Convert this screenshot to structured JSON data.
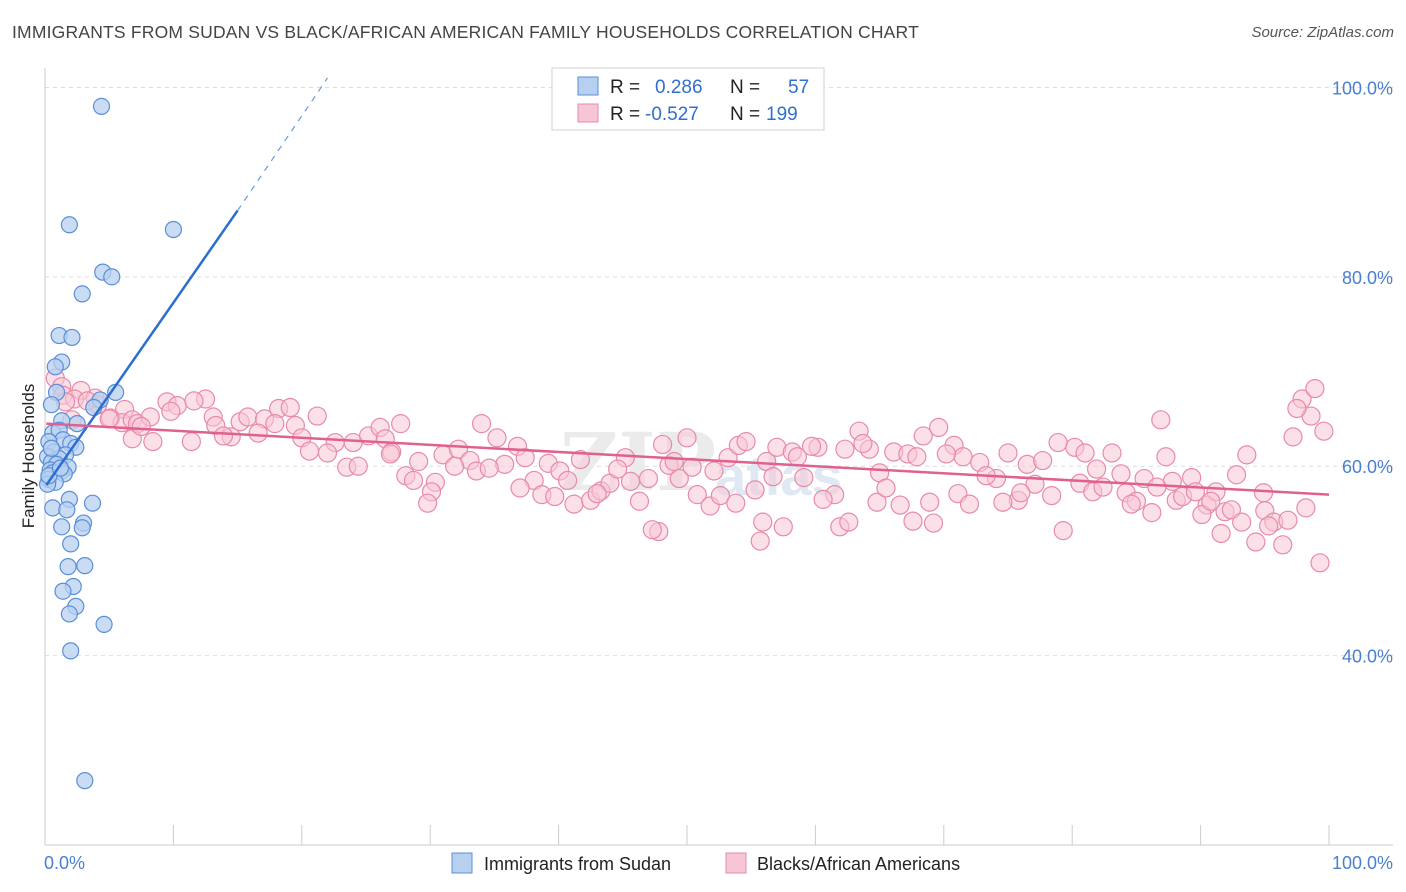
{
  "title": "IMMIGRANTS FROM SUDAN VS BLACK/AFRICAN AMERICAN FAMILY HOUSEHOLDS CORRELATION CHART",
  "source": "Source: ZipAtlas.com",
  "watermark": {
    "zip": "ZIP",
    "atlas": "atlas"
  },
  "legend": {
    "r_label": "R =",
    "n_label": "N =",
    "series1": {
      "r": "0.286",
      "n": "57"
    },
    "series2": {
      "r": "-0.527",
      "n": "199"
    }
  },
  "colors": {
    "blue_fill": "#b7d0f0",
    "blue_stroke": "#5a8fd8",
    "blue_line": "#2a6fcf",
    "pink_fill": "#f7c6d6",
    "pink_stroke": "#e88aaa",
    "pink_line": "#e0608f",
    "grid": "#dddddd",
    "tick_text": "#4a7fd0"
  },
  "chart_data": {
    "type": "scatter",
    "title": "IMMIGRANTS FROM SUDAN VS BLACK/AFRICAN AMERICAN FAMILY HOUSEHOLDS CORRELATION CHART",
    "xlabel": "",
    "ylabel": "Family Households",
    "xlim": [
      0,
      100
    ],
    "ylim": [
      20,
      104
    ],
    "x_tick_labels": {
      "left": "0.0%",
      "right": "100.0%"
    },
    "y_ticks": [
      {
        "value": 100,
        "label": "100.0%"
      },
      {
        "value": 80,
        "label": "80.0%"
      },
      {
        "value": 60,
        "label": "60.0%"
      },
      {
        "value": 40,
        "label": "40.0%"
      }
    ],
    "grid": true,
    "legend_position": "top-center",
    "series": [
      {
        "name": "Immigrants from Sudan",
        "color": "blue",
        "points": [
          [
            4.4,
            98
          ],
          [
            1.9,
            85.5
          ],
          [
            10,
            85
          ],
          [
            4.5,
            80.5
          ],
          [
            5.2,
            80
          ],
          [
            2.9,
            78.2
          ],
          [
            1.1,
            73.8
          ],
          [
            2.1,
            73.6
          ],
          [
            1.3,
            71
          ],
          [
            0.8,
            70.5
          ],
          [
            5.5,
            67.8
          ],
          [
            0.9,
            67.8
          ],
          [
            4.3,
            67
          ],
          [
            0.5,
            66.5
          ],
          [
            3.8,
            66.2
          ],
          [
            2.5,
            64.5
          ],
          [
            1.3,
            64.8
          ],
          [
            0.6,
            63.5
          ],
          [
            1.1,
            63.8
          ],
          [
            1.4,
            62.8
          ],
          [
            2.0,
            62.4
          ],
          [
            0.3,
            62.6
          ],
          [
            2.4,
            62
          ],
          [
            0.7,
            61.5
          ],
          [
            1.6,
            61.2
          ],
          [
            0.2,
            61
          ],
          [
            1.1,
            60.8
          ],
          [
            0.5,
            60.4
          ],
          [
            0.9,
            60.2
          ],
          [
            1.8,
            59.9
          ],
          [
            0.4,
            59.6
          ],
          [
            1.3,
            59.5
          ],
          [
            0.6,
            59.3
          ],
          [
            1.5,
            59.2
          ],
          [
            0.3,
            58.6
          ],
          [
            0.8,
            58.3
          ],
          [
            0.2,
            58.1
          ],
          [
            1.9,
            56.5
          ],
          [
            3.7,
            56.1
          ],
          [
            0.6,
            55.6
          ],
          [
            1.7,
            55.4
          ],
          [
            2.0,
            51.8
          ],
          [
            3.0,
            54
          ],
          [
            2.9,
            53.5
          ],
          [
            1.3,
            53.6
          ],
          [
            3.1,
            49.5
          ],
          [
            1.8,
            49.4
          ],
          [
            2.2,
            47.3
          ],
          [
            1.4,
            46.8
          ],
          [
            2.4,
            45.2
          ],
          [
            1.9,
            44.4
          ],
          [
            4.6,
            43.3
          ],
          [
            2.0,
            40.5
          ],
          [
            3.1,
            26.8
          ],
          [
            0.3,
            59
          ],
          [
            1.2,
            59.8
          ],
          [
            0.5,
            61.9
          ]
        ]
      },
      {
        "name": "Blacks/African Americans",
        "color": "pink",
        "points": [
          [
            0.8,
            69.3
          ],
          [
            1.3,
            68.4
          ],
          [
            1.4,
            67.5
          ],
          [
            2.8,
            68
          ],
          [
            3.9,
            67.2
          ],
          [
            2.3,
            67.1
          ],
          [
            4.1,
            66.5
          ],
          [
            6.2,
            66
          ],
          [
            9.5,
            66.8
          ],
          [
            10.3,
            66.4
          ],
          [
            12.5,
            67.1
          ],
          [
            11.6,
            66.9
          ],
          [
            5.1,
            65.1
          ],
          [
            6.0,
            64.6
          ],
          [
            6.8,
            64.9
          ],
          [
            7.2,
            64.5
          ],
          [
            8.2,
            65.2
          ],
          [
            9.8,
            65.8
          ],
          [
            13.1,
            65.2
          ],
          [
            14.5,
            63.1
          ],
          [
            15.2,
            64.7
          ],
          [
            15.8,
            65.2
          ],
          [
            17.1,
            65.0
          ],
          [
            18.2,
            66.1
          ],
          [
            19.1,
            66.2
          ],
          [
            19.5,
            64.3
          ],
          [
            21.2,
            65.3
          ],
          [
            22.6,
            62.5
          ],
          [
            24.0,
            62.5
          ],
          [
            25.2,
            63.2
          ],
          [
            26.1,
            64.1
          ],
          [
            26.5,
            62.9
          ],
          [
            27.7,
            64.5
          ],
          [
            29.1,
            60.5
          ],
          [
            30.4,
            58.3
          ],
          [
            31.0,
            61.2
          ],
          [
            32.2,
            61.8
          ],
          [
            33.1,
            60.6
          ],
          [
            34.0,
            64.5
          ],
          [
            35.2,
            63.0
          ],
          [
            36.8,
            62.1
          ],
          [
            37.4,
            60.9
          ],
          [
            38.1,
            58.5
          ],
          [
            39.2,
            60.3
          ],
          [
            40.1,
            59.5
          ],
          [
            41.2,
            56.0
          ],
          [
            42.5,
            56.4
          ],
          [
            43.3,
            57.4
          ],
          [
            44.0,
            58.2
          ],
          [
            45.2,
            60.9
          ],
          [
            46.3,
            56.3
          ],
          [
            47.0,
            58.7
          ],
          [
            47.8,
            53.1
          ],
          [
            48.6,
            60.1
          ],
          [
            49.4,
            58.7
          ],
          [
            50.0,
            63.0
          ],
          [
            50.8,
            57.0
          ],
          [
            52.1,
            59.5
          ],
          [
            53.2,
            60.9
          ],
          [
            54.0,
            62.2
          ],
          [
            55.3,
            57.5
          ],
          [
            56.2,
            60.5
          ],
          [
            57.0,
            62.0
          ],
          [
            58.2,
            61.5
          ],
          [
            59.1,
            58.8
          ],
          [
            60.2,
            62.0
          ],
          [
            61.5,
            57.0
          ],
          [
            62.3,
            61.8
          ],
          [
            63.4,
            63.7
          ],
          [
            64.2,
            61.8
          ],
          [
            65.0,
            59.3
          ],
          [
            66.1,
            61.5
          ],
          [
            67.2,
            61.3
          ],
          [
            67.9,
            61.0
          ],
          [
            68.4,
            63.2
          ],
          [
            69.6,
            64.1
          ],
          [
            70.8,
            62.2
          ],
          [
            71.5,
            61.0
          ],
          [
            72.8,
            60.4
          ],
          [
            74.1,
            58.7
          ],
          [
            75.0,
            61.4
          ],
          [
            75.8,
            56.4
          ],
          [
            76.5,
            60.2
          ],
          [
            77.1,
            58.1
          ],
          [
            78.4,
            56.9
          ],
          [
            79.3,
            53.2
          ],
          [
            80.2,
            62.0
          ],
          [
            81.0,
            61.4
          ],
          [
            81.9,
            59.7
          ],
          [
            83.1,
            61.4
          ],
          [
            84.2,
            57.2
          ],
          [
            85.0,
            56.3
          ],
          [
            86.2,
            55.1
          ],
          [
            86.9,
            64.9
          ],
          [
            87.8,
            58.4
          ],
          [
            88.1,
            56.4
          ],
          [
            89.3,
            58.8
          ],
          [
            90.5,
            55.9
          ],
          [
            91.2,
            57.3
          ],
          [
            91.9,
            55.2
          ],
          [
            92.8,
            59.1
          ],
          [
            93.6,
            61.2
          ],
          [
            94.3,
            52.0
          ],
          [
            95.0,
            55.3
          ],
          [
            95.7,
            54.1
          ],
          [
            96.4,
            51.7
          ],
          [
            97.2,
            63.1
          ],
          [
            97.9,
            67.1
          ],
          [
            98.6,
            65.3
          ],
          [
            99.3,
            49.8
          ],
          [
            1.6,
            66.8
          ],
          [
            2.1,
            64.9
          ],
          [
            3.3,
            66.9
          ],
          [
            5.0,
            65.0
          ],
          [
            6.8,
            62.9
          ],
          [
            7.5,
            64.2
          ],
          [
            8.4,
            62.6
          ],
          [
            11.4,
            62.6
          ],
          [
            13.3,
            64.3
          ],
          [
            13.9,
            63.2
          ],
          [
            16.6,
            63.5
          ],
          [
            17.9,
            64.5
          ],
          [
            20.0,
            63.0
          ],
          [
            20.6,
            61.6
          ],
          [
            22.0,
            61.4
          ],
          [
            23.5,
            59.9
          ],
          [
            24.4,
            60.0
          ],
          [
            27.0,
            61.5
          ],
          [
            28.1,
            59.0
          ],
          [
            28.7,
            58.5
          ],
          [
            30.1,
            57.3
          ],
          [
            31.9,
            60.0
          ],
          [
            33.6,
            59.5
          ],
          [
            35.8,
            60.2
          ],
          [
            37.0,
            57.7
          ],
          [
            38.7,
            57.0
          ],
          [
            39.7,
            56.8
          ],
          [
            41.7,
            60.7
          ],
          [
            43.0,
            57.1
          ],
          [
            44.6,
            59.7
          ],
          [
            45.6,
            58.4
          ],
          [
            47.3,
            53.3
          ],
          [
            48.1,
            62.3
          ],
          [
            49.0,
            60.5
          ],
          [
            50.4,
            59.9
          ],
          [
            51.8,
            55.8
          ],
          [
            52.6,
            56.9
          ],
          [
            53.8,
            56.1
          ],
          [
            54.6,
            62.6
          ],
          [
            55.9,
            54.1
          ],
          [
            56.7,
            58.9
          ],
          [
            57.5,
            53.6
          ],
          [
            58.6,
            61.0
          ],
          [
            59.7,
            62.1
          ],
          [
            60.6,
            56.5
          ],
          [
            61.9,
            53.6
          ],
          [
            62.6,
            54.1
          ],
          [
            63.7,
            62.4
          ],
          [
            64.8,
            56.2
          ],
          [
            65.5,
            57.7
          ],
          [
            66.6,
            55.9
          ],
          [
            67.6,
            54.2
          ],
          [
            68.9,
            56.2
          ],
          [
            69.2,
            54.0
          ],
          [
            70.2,
            61.3
          ],
          [
            71.1,
            57.1
          ],
          [
            72.0,
            56.0
          ],
          [
            73.3,
            59.0
          ],
          [
            74.6,
            56.2
          ],
          [
            76.0,
            57.2
          ],
          [
            77.7,
            60.6
          ],
          [
            78.9,
            62.5
          ],
          [
            80.6,
            58.2
          ],
          [
            81.6,
            57.3
          ],
          [
            82.4,
            57.8
          ],
          [
            83.8,
            59.2
          ],
          [
            84.6,
            56.0
          ],
          [
            85.6,
            58.7
          ],
          [
            86.6,
            57.8
          ],
          [
            87.3,
            61.0
          ],
          [
            88.6,
            56.8
          ],
          [
            89.6,
            57.3
          ],
          [
            90.1,
            54.9
          ],
          [
            90.8,
            56.3
          ],
          [
            91.6,
            52.9
          ],
          [
            92.4,
            55.4
          ],
          [
            93.2,
            54.1
          ],
          [
            94.9,
            57.2
          ],
          [
            95.3,
            53.7
          ],
          [
            96.8,
            54.3
          ],
          [
            97.5,
            66.1
          ],
          [
            98.2,
            55.6
          ],
          [
            98.9,
            68.2
          ],
          [
            99.6,
            63.7
          ],
          [
            26.9,
            61.3
          ],
          [
            29.8,
            56.1
          ],
          [
            34.6,
            59.8
          ],
          [
            40.7,
            58.5
          ],
          [
            55.7,
            52.1
          ]
        ]
      }
    ],
    "trend_lines": [
      {
        "series": "Immigrants from Sudan",
        "x1": 0.1,
        "y1": 58.0,
        "x2": 15.0,
        "y2": 87.0,
        "dashed_to_x": 22.0,
        "dashed_to_y": 101.0
      },
      {
        "series": "Blacks/African Americans",
        "x1": 0.1,
        "y1": 64.5,
        "x2": 100.0,
        "y2": 57.0
      }
    ]
  }
}
